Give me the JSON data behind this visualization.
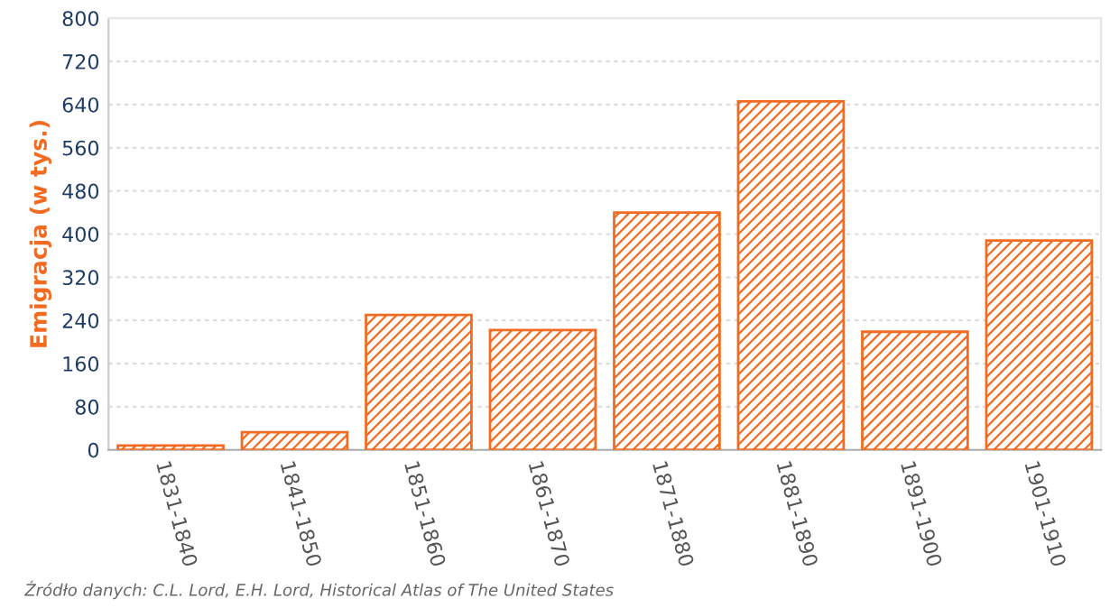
{
  "chart_data": {
    "type": "bar",
    "ylabel": "Emigracja (w tys.)",
    "categories": [
      "1831-1840",
      "1841-1850",
      "1851-1860",
      "1861-1870",
      "1871-1880",
      "1881-1890",
      "1891-1900",
      "1901-1910"
    ],
    "values": [
      8,
      33,
      250,
      222,
      440,
      646,
      219,
      388
    ],
    "color": "#f26b21",
    "ylim": [
      0,
      800
    ],
    "yticks": [
      0,
      80,
      160,
      240,
      320,
      400,
      480,
      560,
      640,
      720,
      800
    ],
    "grid": "y",
    "annotations": [
      "Źródło danych: C.L. Lord, E.H. Lord, Historical Atlas of The United States"
    ]
  }
}
